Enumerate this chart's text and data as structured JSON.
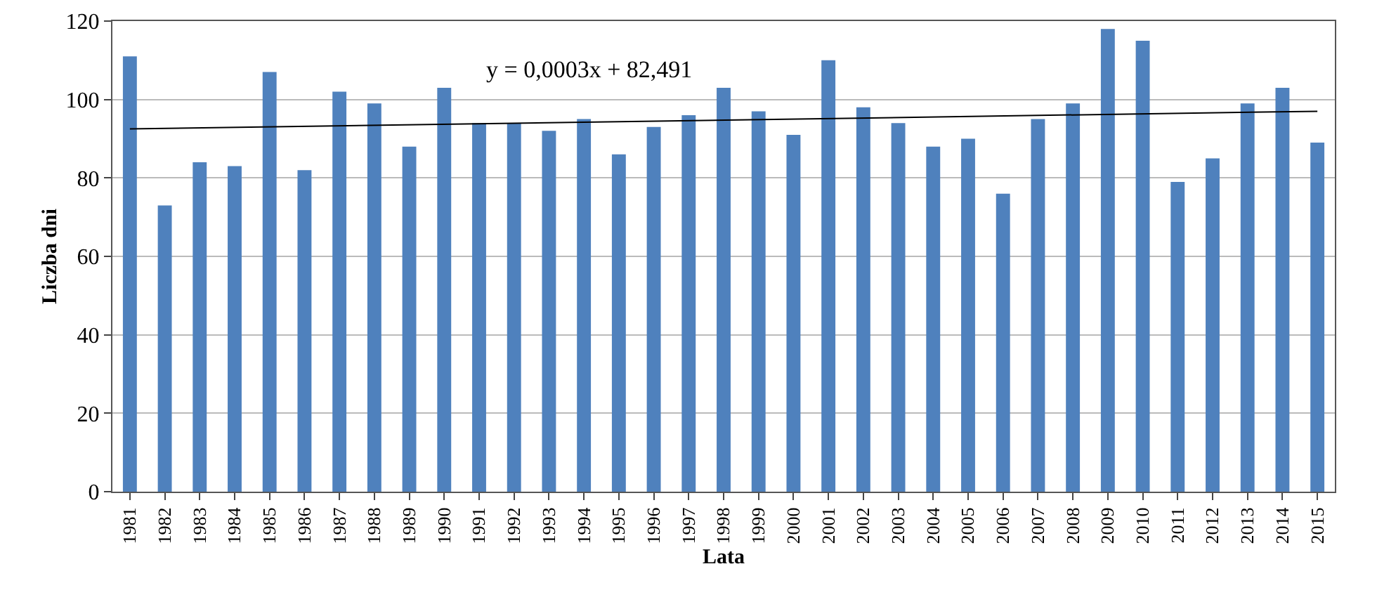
{
  "chart_data": {
    "type": "bar",
    "xlabel": "Lata",
    "ylabel": "Liczba dni",
    "categories": [
      "1981",
      "1982",
      "1983",
      "1984",
      "1985",
      "1986",
      "1987",
      "1988",
      "1989",
      "1990",
      "1991",
      "1992",
      "1993",
      "1994",
      "1995",
      "1996",
      "1997",
      "1998",
      "1999",
      "2000",
      "2001",
      "2002",
      "2003",
      "2004",
      "2005",
      "2006",
      "2007",
      "2008",
      "2009",
      "2010",
      "2011",
      "2012",
      "2013",
      "2014",
      "2015"
    ],
    "series": [
      {
        "color": "#4f81bd",
        "values": [
          111,
          73,
          84,
          83,
          107,
          82,
          102,
          99,
          88,
          103,
          94,
          94,
          92,
          95,
          86,
          93,
          96,
          103,
          97,
          91,
          110,
          98,
          94,
          88,
          90,
          76,
          95,
          99,
          118,
          115,
          79,
          85,
          99,
          103,
          89
        ]
      },
      {
        "type": "line",
        "color": "#000000",
        "values": [
          92.5,
          null,
          null,
          null,
          null,
          null,
          null,
          null,
          null,
          null,
          null,
          null,
          null,
          null,
          null,
          null,
          null,
          null,
          null,
          null,
          null,
          null,
          null,
          null,
          null,
          null,
          null,
          null,
          null,
          null,
          null,
          null,
          null,
          null,
          97
        ]
      }
    ],
    "ylim": [
      0,
      120
    ],
    "yticks": [
      0,
      20,
      40,
      60,
      80,
      100,
      120
    ],
    "grid": "y",
    "annotations": [
      "y = 0,0003x + 82,491"
    ]
  }
}
